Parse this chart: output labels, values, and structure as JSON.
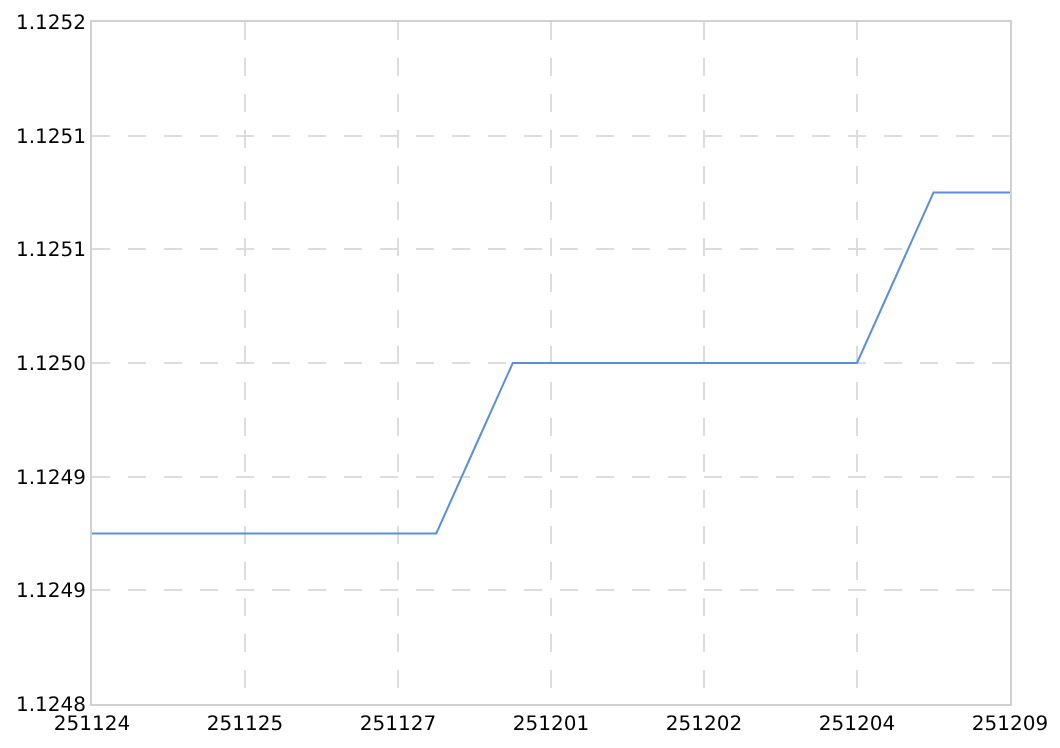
{
  "chart_data": {
    "type": "line",
    "categories": [
      "251124",
      null,
      null,
      null,
      "251125",
      null,
      null,
      null,
      "251127",
      null,
      null,
      null,
      "251201",
      null,
      null,
      null,
      "251202",
      null,
      null,
      null,
      "251204",
      null,
      null,
      null,
      "251209"
    ],
    "series": [
      {
        "color": "#5b8fd9",
        "values": [
          1.1249,
          1.1249,
          1.1249,
          1.1249,
          1.1249,
          1.1249,
          1.1249,
          1.1249,
          1.1249,
          1.1249,
          1.12495,
          1.125,
          1.125,
          1.125,
          1.125,
          1.125,
          1.125,
          1.125,
          1.125,
          1.125,
          1.125,
          1.12505,
          1.1251,
          1.1251,
          1.1251
        ]
      }
    ],
    "ylim": [
      1.1248,
      1.1252
    ],
    "yticks": [
      {
        "value": 1.1248,
        "label": "1.1248"
      },
      {
        "value": 1.124867,
        "label": "1.1249"
      },
      {
        "value": 1.124933,
        "label": "1.1249"
      },
      {
        "value": 1.125,
        "label": "1.1250"
      },
      {
        "value": 1.125067,
        "label": "1.1251"
      },
      {
        "value": 1.125133,
        "label": "1.1251"
      },
      {
        "value": 1.1252,
        "label": "1.1252"
      }
    ],
    "grid": true,
    "line_style": "solid"
  }
}
